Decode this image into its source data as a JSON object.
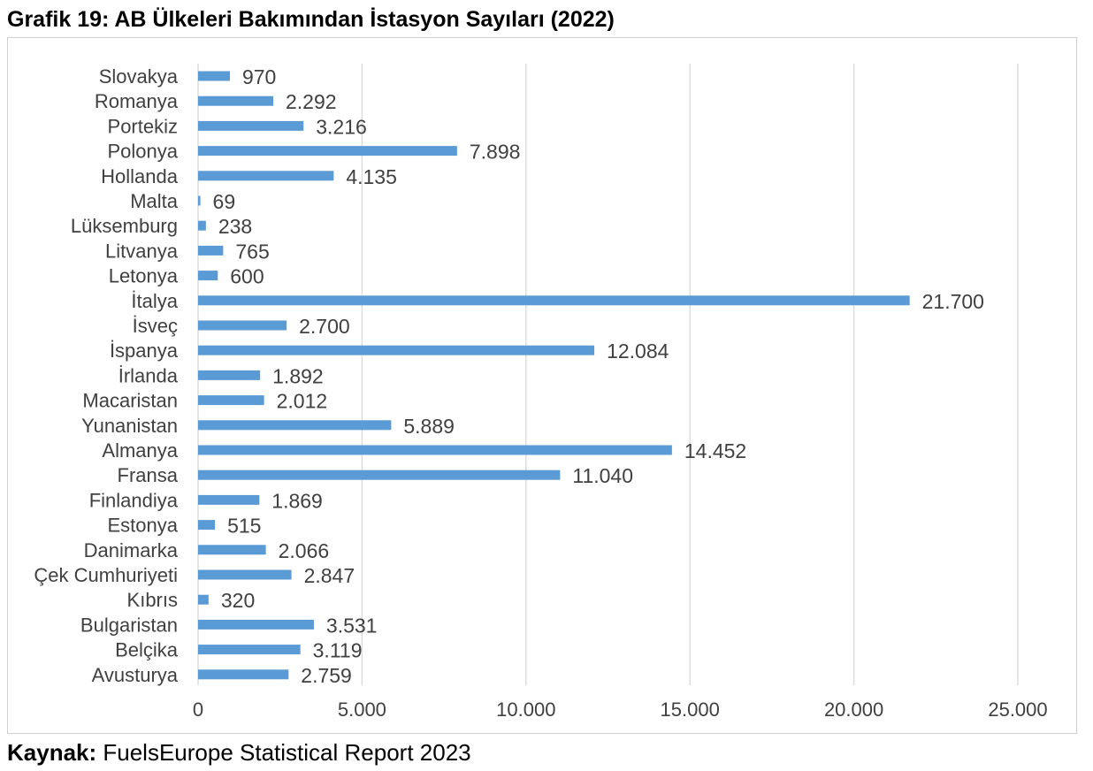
{
  "title": "Grafik 19: AB Ülkeleri Bakımından İstasyon Sayıları (2022)",
  "source": {
    "label": "Kaynak:",
    "text": " FuelsEurope Statistical Report 2023"
  },
  "colors": {
    "bar": "#5b9bd5",
    "grid": "#d9d9d9",
    "text": "#404040"
  },
  "chart_data": {
    "type": "bar",
    "orientation": "horizontal",
    "categories": [
      "Slovakya",
      "Romanya",
      "Portekiz",
      "Polonya",
      "Hollanda",
      "Malta",
      "Lüksemburg",
      "Litvanya",
      "Letonya",
      "İtalya",
      "İsveç",
      "İspanya",
      "İrlanda",
      "Macaristan",
      "Yunanistan",
      "Almanya",
      "Fransa",
      "Finlandiya",
      "Estonya",
      "Danimarka",
      "Çek Cumhuriyeti",
      "Kıbrıs",
      "Bulgaristan",
      "Belçika",
      "Avusturya"
    ],
    "values": [
      970,
      2292,
      3216,
      7898,
      4135,
      69,
      238,
      765,
      600,
      21700,
      2700,
      12084,
      1892,
      2012,
      5889,
      14452,
      11040,
      1869,
      515,
      2066,
      2847,
      320,
      3531,
      3119,
      2759
    ],
    "value_labels": [
      "970",
      "2.292",
      "3.216",
      "7.898",
      "4.135",
      "69",
      "238",
      "765",
      "600",
      "21.700",
      "2.700",
      "12.084",
      "1.892",
      "2.012",
      "5.889",
      "14.452",
      "11.040",
      "1.869",
      "515",
      "2.066",
      "2.847",
      "320",
      "3.531",
      "3.119",
      "2.759"
    ],
    "xlim": [
      0,
      25000
    ],
    "ticks": [
      0,
      5000,
      10000,
      15000,
      20000,
      25000
    ],
    "tick_labels": [
      "0",
      "5.000",
      "10.000",
      "15.000",
      "20.000",
      "25.000"
    ],
    "grid": true,
    "legend": "none"
  }
}
